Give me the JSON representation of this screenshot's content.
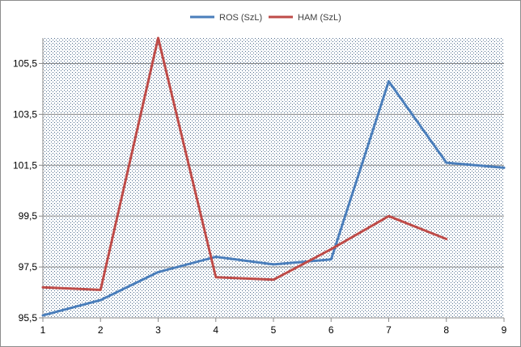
{
  "chart_data": {
    "type": "line",
    "title": "",
    "xlabel": "",
    "ylabel": "",
    "x": [
      1,
      2,
      3,
      4,
      5,
      6,
      7,
      8,
      9
    ],
    "xlim": [
      1,
      9
    ],
    "ylim": [
      95.5,
      106.5
    ],
    "y_ticks": [
      "95,5",
      "97,5",
      "99,5",
      "101,5",
      "103,5",
      "105,5"
    ],
    "x_ticks": [
      "1",
      "2",
      "3",
      "4",
      "5",
      "6",
      "7",
      "8",
      "9"
    ],
    "grid": "horizontal",
    "legend_position": "top",
    "series": [
      {
        "name": "ROS (SzL)",
        "color": "#4a7ebb",
        "values": [
          95.6,
          96.2,
          97.3,
          97.9,
          97.6,
          97.8,
          104.8,
          101.6,
          101.4
        ]
      },
      {
        "name": "HAM (SzL)",
        "color": "#be4b48",
        "values": [
          96.7,
          96.6,
          106.5,
          97.1,
          97.0,
          98.2,
          99.5,
          98.6,
          null
        ]
      }
    ]
  }
}
